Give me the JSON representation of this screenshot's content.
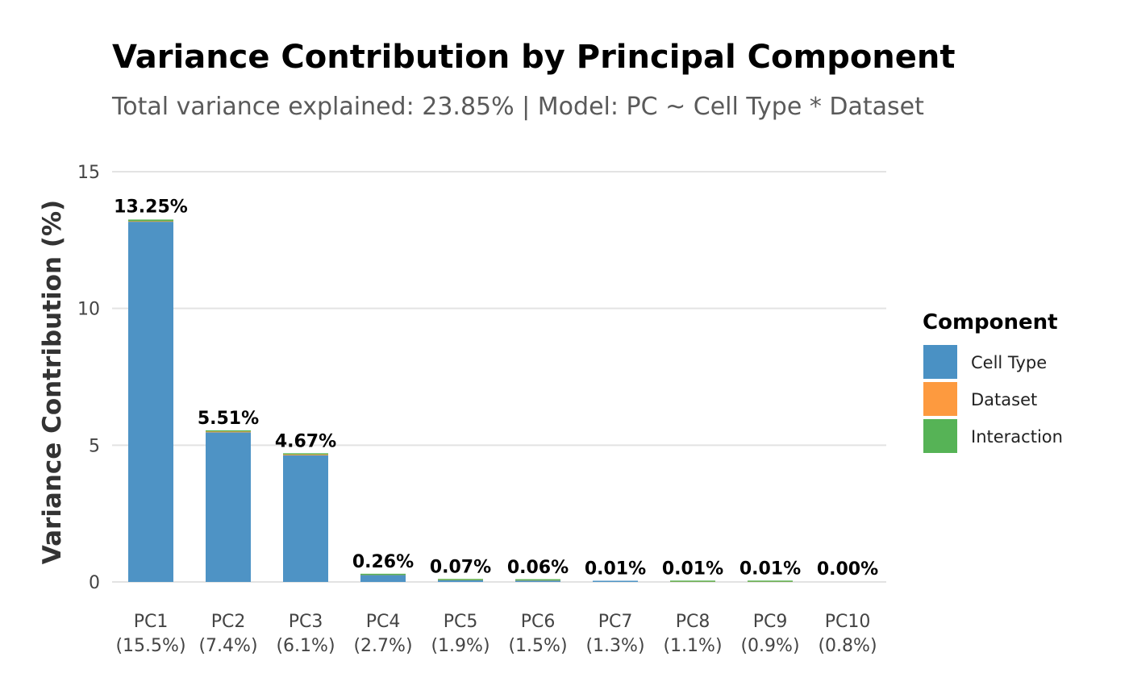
{
  "chart_data": {
    "type": "bar",
    "stacked": true,
    "title": "Variance Contribution by Principal Component",
    "subtitle": "Total variance explained: 23.85% | Model: PC ~ Cell Type * Dataset",
    "xlabel": "",
    "ylabel": "Variance Contribution (%)",
    "ylim": [
      0,
      15
    ],
    "yticks": [
      "0",
      "5",
      "10",
      "15"
    ],
    "ytick_values": [
      0,
      5,
      10,
      15
    ],
    "grid": true,
    "legend_position": "right",
    "legend_title": "Component",
    "categories": [
      "PC1",
      "PC2",
      "PC3",
      "PC4",
      "PC5",
      "PC6",
      "PC7",
      "PC8",
      "PC9",
      "PC10"
    ],
    "category_sublabels": [
      "(15.5%)",
      "(7.4%)",
      "(6.1%)",
      "(2.7%)",
      "(1.9%)",
      "(1.5%)",
      "(1.3%)",
      "(1.1%)",
      "(0.9%)",
      "(0.8%)"
    ],
    "series": [
      {
        "name": "Cell Type",
        "color": "#4a91c4",
        "values": [
          13.17,
          5.47,
          4.63,
          0.25,
          0.06,
          0.05,
          0.01,
          0.0,
          0.0,
          0.0
        ]
      },
      {
        "name": "Dataset",
        "color": "#fd9a3f",
        "values": [
          0.02,
          0.03,
          0.03,
          0.005,
          0.005,
          0.005,
          0.0,
          0.005,
          0.005,
          0.0
        ]
      },
      {
        "name": "Interaction",
        "color": "#56b356",
        "values": [
          0.06,
          0.01,
          0.01,
          0.005,
          0.005,
          0.005,
          0.0,
          0.005,
          0.005,
          0.0
        ]
      }
    ],
    "totals": [
      13.25,
      5.51,
      4.67,
      0.26,
      0.07,
      0.06,
      0.01,
      0.01,
      0.01,
      0.0
    ],
    "total_labels": [
      "13.25%",
      "5.51%",
      "4.67%",
      "0.26%",
      "0.07%",
      "0.06%",
      "0.01%",
      "0.01%",
      "0.01%",
      "0.00%"
    ]
  }
}
